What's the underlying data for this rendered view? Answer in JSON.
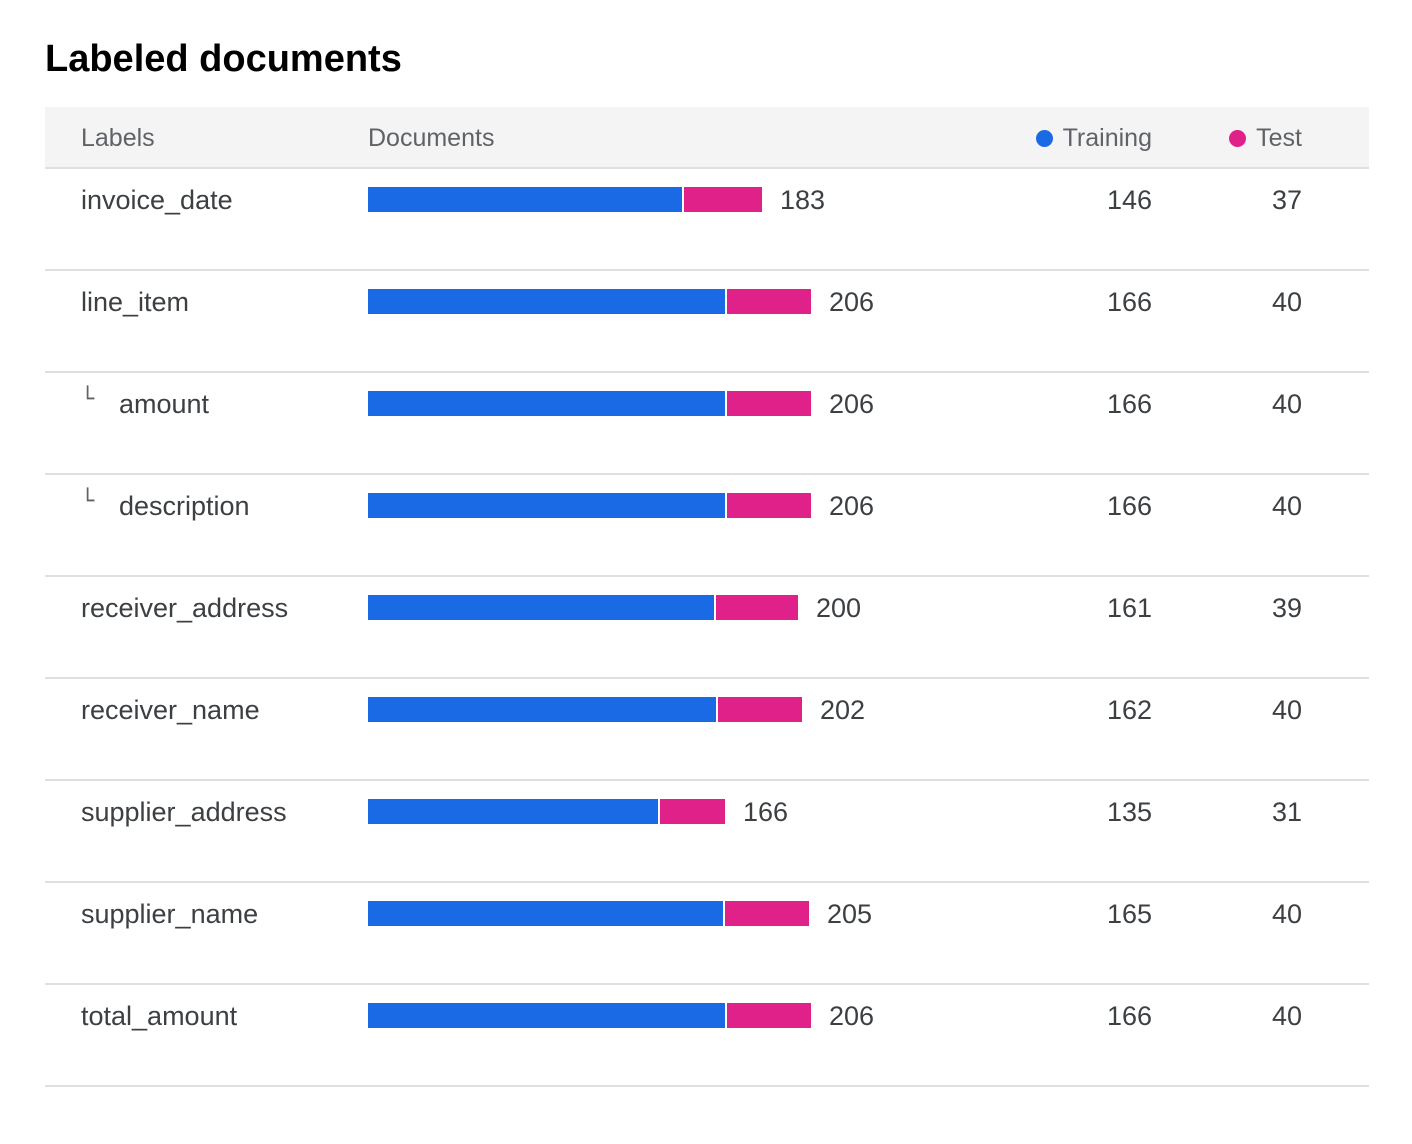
{
  "title": "Labeled documents",
  "colors": {
    "training": "#1a6ae6",
    "test": "#e0218a"
  },
  "header": {
    "labels": "Labels",
    "documents": "Documents",
    "training": "Training",
    "test": "Test"
  },
  "rows": [
    {
      "label": "invoice_date",
      "child": false,
      "total": "183",
      "training": "146",
      "test": "37"
    },
    {
      "label": "line_item",
      "child": false,
      "total": "206",
      "training": "166",
      "test": "40"
    },
    {
      "label": "amount",
      "child": true,
      "total": "206",
      "training": "166",
      "test": "40"
    },
    {
      "label": "description",
      "child": true,
      "total": "206",
      "training": "166",
      "test": "40"
    },
    {
      "label": "receiver_address",
      "child": false,
      "total": "200",
      "training": "161",
      "test": "39"
    },
    {
      "label": "receiver_name",
      "child": false,
      "total": "202",
      "training": "162",
      "test": "40"
    },
    {
      "label": "supplier_address",
      "child": false,
      "total": "166",
      "training": "135",
      "test": "31"
    },
    {
      "label": "supplier_name",
      "child": false,
      "total": "205",
      "training": "165",
      "test": "40"
    },
    {
      "label": "total_amount",
      "child": false,
      "total": "206",
      "training": "166",
      "test": "40"
    }
  ]
}
